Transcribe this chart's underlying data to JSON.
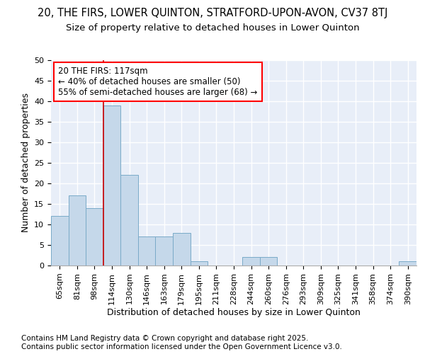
{
  "title1": "20, THE FIRS, LOWER QUINTON, STRATFORD-UPON-AVON, CV37 8TJ",
  "title2": "Size of property relative to detached houses in Lower Quinton",
  "xlabel": "Distribution of detached houses by size in Lower Quinton",
  "ylabel": "Number of detached properties",
  "categories": [
    "65sqm",
    "81sqm",
    "98sqm",
    "114sqm",
    "130sqm",
    "146sqm",
    "163sqm",
    "179sqm",
    "195sqm",
    "211sqm",
    "228sqm",
    "244sqm",
    "260sqm",
    "276sqm",
    "293sqm",
    "309sqm",
    "325sqm",
    "341sqm",
    "358sqm",
    "374sqm",
    "390sqm"
  ],
  "values": [
    12,
    17,
    14,
    39,
    22,
    7,
    7,
    8,
    1,
    0,
    0,
    2,
    2,
    0,
    0,
    0,
    0,
    0,
    0,
    0,
    1
  ],
  "bar_color": "#c5d8ea",
  "bar_edge_color": "#7aaac8",
  "vline_x_bar_index": 3,
  "vline_color": "#cc0000",
  "annotation_text": "20 THE FIRS: 117sqm\n← 40% of detached houses are smaller (50)\n55% of semi-detached houses are larger (68) →",
  "ylim": [
    0,
    50
  ],
  "yticks": [
    0,
    5,
    10,
    15,
    20,
    25,
    30,
    35,
    40,
    45,
    50
  ],
  "footer1": "Contains HM Land Registry data © Crown copyright and database right 2025.",
  "footer2": "Contains public sector information licensed under the Open Government Licence v3.0.",
  "bg_color": "#e8eef8",
  "grid_color": "#ffffff",
  "title_fontsize": 10.5,
  "subtitle_fontsize": 9.5,
  "axis_label_fontsize": 9,
  "tick_fontsize": 8,
  "footer_fontsize": 7.5
}
